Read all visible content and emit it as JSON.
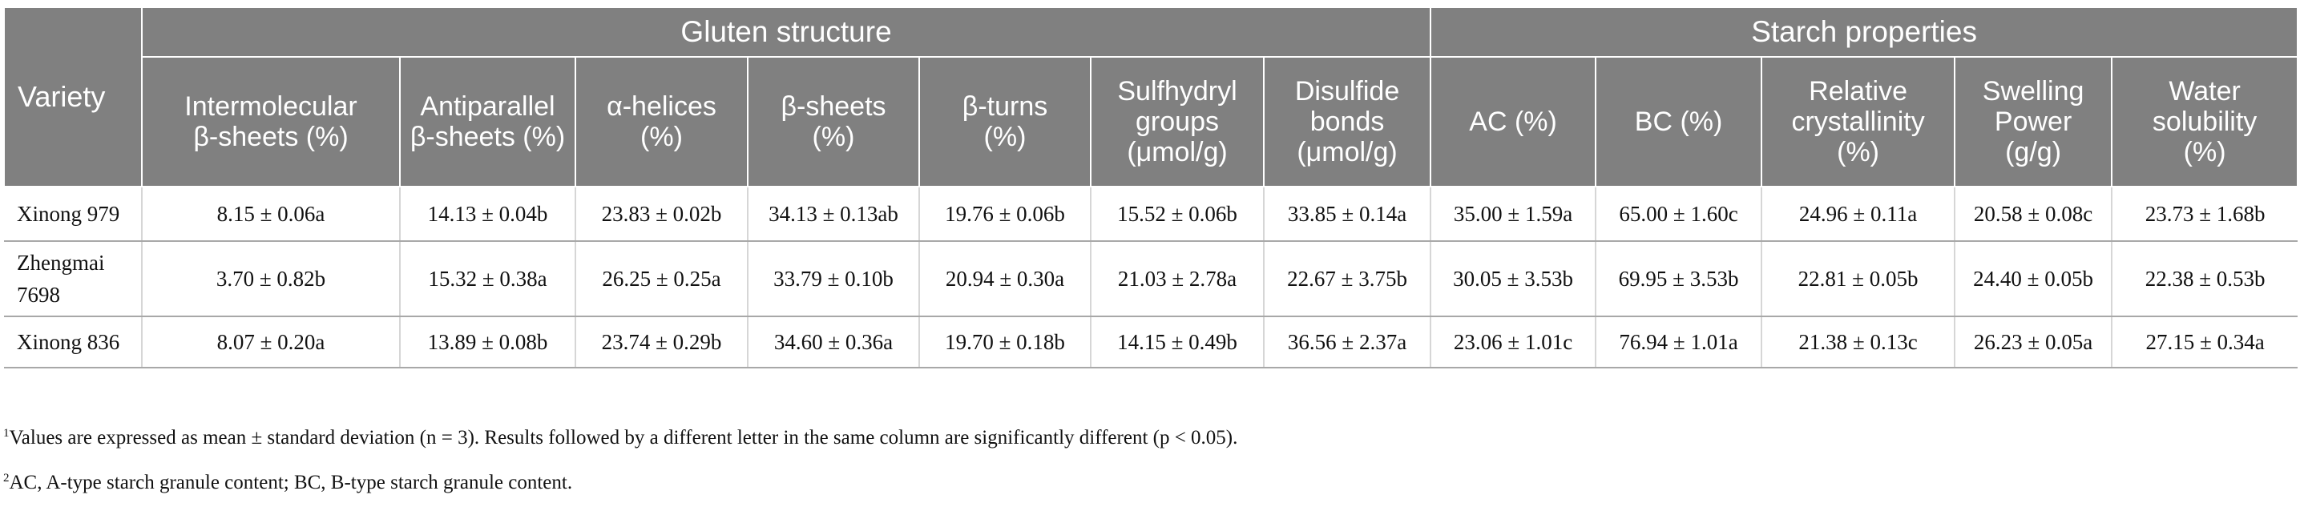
{
  "table": {
    "variety_header": "Variety",
    "groups": [
      "Gluten structure",
      "Starch properties"
    ],
    "columns": [
      [
        "Intermolecular",
        "β-sheets (%)"
      ],
      [
        "Antiparallel",
        "β-sheets (%)"
      ],
      [
        "α-helices",
        "(%)"
      ],
      [
        "β-sheets",
        "(%)"
      ],
      [
        "β-turns",
        "(%)"
      ],
      [
        "Sulfhydryl",
        "groups",
        "(μmol/g)"
      ],
      [
        "Disulfide",
        "bonds",
        "(μmol/g)"
      ],
      [
        "AC (%)"
      ],
      [
        "BC (%)"
      ],
      [
        "Relative",
        "crystallinity",
        "(%)"
      ],
      [
        "Swelling",
        "Power",
        "(g/g)"
      ],
      [
        "Water",
        "solubility",
        "(%)"
      ]
    ],
    "rows": [
      {
        "variety": [
          "Xinong 979"
        ],
        "values": [
          "8.15 ± 0.06a",
          "14.13 ± 0.04b",
          "23.83 ± 0.02b",
          "34.13 ± 0.13ab",
          "19.76 ± 0.06b",
          "15.52 ± 0.06b",
          "33.85 ± 0.14a",
          "35.00 ± 1.59a",
          "65.00 ± 1.60c",
          "24.96 ± 0.11a",
          "20.58 ± 0.08c",
          "23.73 ± 1.68b"
        ]
      },
      {
        "variety": [
          "Zhengmai",
          "7698"
        ],
        "values": [
          "3.70 ± 0.82b",
          "15.32 ± 0.38a",
          "26.25 ± 0.25a",
          "33.79 ± 0.10b",
          "20.94 ± 0.30a",
          "21.03 ± 2.78a",
          "22.67 ± 3.75b",
          "30.05 ± 3.53b",
          "69.95 ± 3.53b",
          "22.81 ± 0.05b",
          "24.40 ± 0.05b",
          "22.38 ± 0.53b"
        ]
      },
      {
        "variety": [
          "Xinong 836"
        ],
        "values": [
          "8.07 ± 0.20a",
          "13.89 ± 0.08b",
          "23.74 ± 0.29b",
          "34.60 ± 0.36a",
          "19.70 ± 0.18b",
          "14.15 ± 0.49b",
          "36.56 ± 2.37a",
          "23.06 ± 1.01c",
          "76.94 ± 1.01a",
          "21.38 ± 0.13c",
          "26.23 ± 0.05a",
          "27.15 ± 0.34a"
        ]
      }
    ]
  },
  "footnotes": [
    {
      "mark": "1",
      "text": "Values are expressed as mean ± standard deviation (n = 3). Results followed by a different letter in the same column are significantly different (p < 0.05)."
    },
    {
      "mark": "2",
      "text": "AC, A-type starch granule content; BC, B-type starch granule content."
    }
  ]
}
